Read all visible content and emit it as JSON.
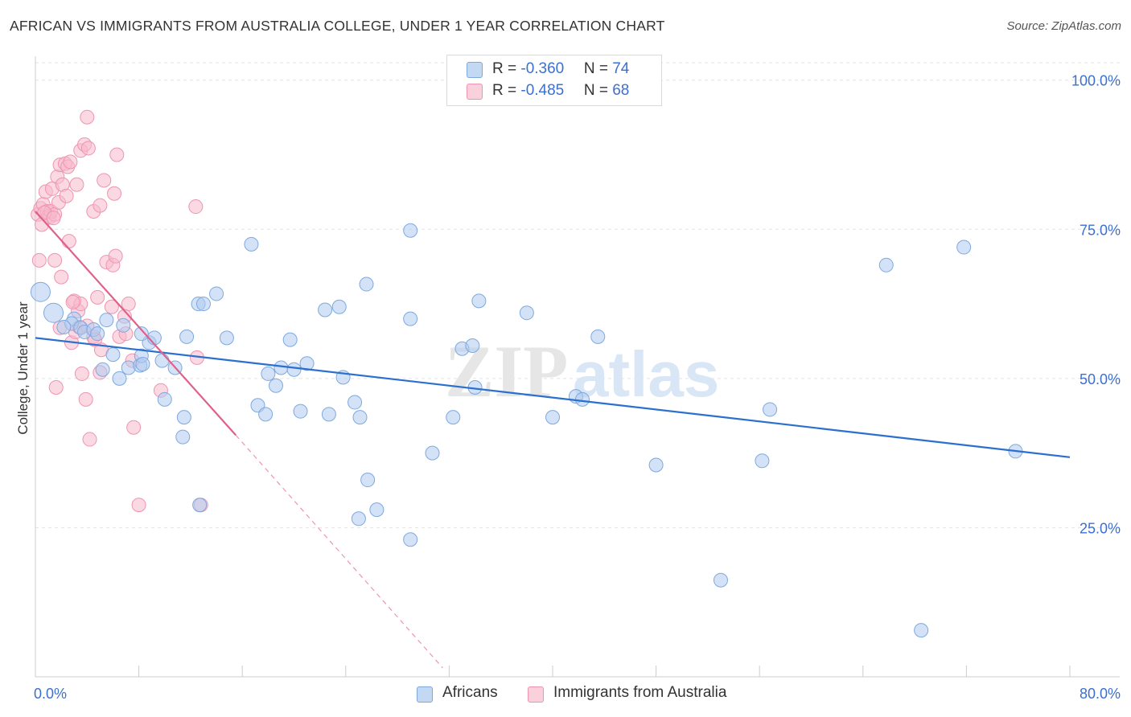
{
  "header": {
    "title": "AFRICAN VS IMMIGRANTS FROM AUSTRALIA COLLEGE, UNDER 1 YEAR CORRELATION CHART",
    "source": "Source: ZipAtlas.com"
  },
  "watermark": {
    "zip": "ZIP",
    "atlas": "atlas"
  },
  "legend": {
    "rows": [
      {
        "r_label": "R = ",
        "r_value": "-0.360",
        "n_label": "N = ",
        "n_value": "74"
      },
      {
        "r_label": "R = ",
        "r_value": "-0.485",
        "n_label": "N = ",
        "n_value": "68"
      }
    ]
  },
  "bottom_legend": {
    "series1": "Africans",
    "series2": "Immigrants from Australia"
  },
  "colors": {
    "blue_fill": "#aecbef",
    "blue_stroke": "#7ea9e0",
    "blue_line": "#2b6fcf",
    "pink_fill": "#f7b9cc",
    "pink_stroke": "#ee94b1",
    "pink_line": "#e0608c",
    "axis_text": "#3b6fd1",
    "grid": "#e3e3e3"
  },
  "chart_data": {
    "type": "scatter",
    "title": "AFRICAN VS IMMIGRANTS FROM AUSTRALIA COLLEGE, UNDER 1 YEAR CORRELATION CHART",
    "xlabel": "",
    "ylabel": "College, Under 1 year",
    "xlim": [
      0,
      80
    ],
    "ylim": [
      0,
      104
    ],
    "x_tick_labels": [
      "0.0%",
      "80.0%"
    ],
    "y_ticks": [
      25,
      50,
      75,
      100
    ],
    "y_tick_labels": [
      "25.0%",
      "50.0%",
      "75.0%",
      "100.0%"
    ],
    "grid": true,
    "legend_position": "top-center",
    "series": [
      {
        "name": "Africans",
        "r": -0.36,
        "n": 74,
        "trend": {
          "x": [
            0,
            80
          ],
          "y": [
            56.8,
            36.8
          ]
        },
        "points": [
          [
            0.4,
            64.5
          ],
          [
            1.4,
            61.0
          ],
          [
            3.0,
            60.0
          ],
          [
            2.8,
            59.2
          ],
          [
            3.5,
            58.5
          ],
          [
            3.8,
            57.8
          ],
          [
            4.5,
            58.2
          ],
          [
            4.8,
            57.5
          ],
          [
            5.5,
            59.8
          ],
          [
            6.0,
            54.0
          ],
          [
            5.2,
            51.5
          ],
          [
            6.5,
            50.0
          ],
          [
            7.2,
            51.8
          ],
          [
            8.1,
            52.2
          ],
          [
            8.8,
            56.0
          ],
          [
            9.2,
            56.8
          ],
          [
            8.2,
            57.5
          ],
          [
            8.2,
            53.8
          ],
          [
            9.8,
            53.0
          ],
          [
            10.0,
            46.5
          ],
          [
            10.8,
            51.8
          ],
          [
            11.7,
            57.0
          ],
          [
            12.6,
            62.5
          ],
          [
            13.0,
            62.5
          ],
          [
            14.0,
            64.2
          ],
          [
            11.5,
            43.5
          ],
          [
            11.4,
            40.2
          ],
          [
            12.7,
            28.8
          ],
          [
            16.7,
            72.5
          ],
          [
            17.2,
            45.5
          ],
          [
            17.8,
            44.0
          ],
          [
            18.0,
            50.8
          ],
          [
            18.6,
            48.8
          ],
          [
            19.0,
            51.8
          ],
          [
            19.7,
            56.5
          ],
          [
            20.0,
            51.5
          ],
          [
            20.5,
            44.5
          ],
          [
            21.0,
            52.5
          ],
          [
            22.4,
            61.5
          ],
          [
            22.7,
            44.0
          ],
          [
            23.5,
            62.0
          ],
          [
            23.8,
            50.2
          ],
          [
            24.7,
            46.0
          ],
          [
            25.1,
            43.5
          ],
          [
            25.0,
            26.5
          ],
          [
            25.7,
            33.0
          ],
          [
            26.4,
            28.0
          ],
          [
            25.6,
            65.8
          ],
          [
            29.0,
            60.0
          ],
          [
            29.0,
            23.0
          ],
          [
            29.0,
            74.8
          ],
          [
            30.7,
            37.5
          ],
          [
            32.3,
            43.5
          ],
          [
            33.0,
            55.0
          ],
          [
            33.8,
            55.5
          ],
          [
            34.0,
            48.5
          ],
          [
            34.3,
            63.0
          ],
          [
            38.0,
            61.0
          ],
          [
            40.0,
            43.5
          ],
          [
            41.8,
            47.0
          ],
          [
            42.3,
            46.5
          ],
          [
            43.5,
            57.0
          ],
          [
            48.0,
            35.5
          ],
          [
            53.0,
            16.2
          ],
          [
            56.2,
            36.2
          ],
          [
            56.8,
            44.8
          ],
          [
            65.8,
            69.0
          ],
          [
            71.8,
            72.0
          ],
          [
            75.8,
            37.8
          ],
          [
            68.5,
            7.8
          ],
          [
            8.3,
            52.4
          ],
          [
            14.8,
            56.8
          ],
          [
            2.2,
            58.6
          ],
          [
            6.8,
            58.9
          ]
        ]
      },
      {
        "name": "Immigrants from Australia",
        "r": -0.485,
        "n": 68,
        "trend": {
          "x": [
            0,
            15.5
          ],
          "y": [
            78.0,
            40.5
          ]
        },
        "trend_extension": {
          "x": [
            15.5,
            31.5
          ],
          "y": [
            40.5,
            1.5
          ]
        },
        "points": [
          [
            0.2,
            77.5
          ],
          [
            0.4,
            78.5
          ],
          [
            0.6,
            79.2
          ],
          [
            0.9,
            78.0
          ],
          [
            1.0,
            77.2
          ],
          [
            1.1,
            77.0
          ],
          [
            1.2,
            78.0
          ],
          [
            1.5,
            77.5
          ],
          [
            0.8,
            81.3
          ],
          [
            1.3,
            81.8
          ],
          [
            1.7,
            83.8
          ],
          [
            1.9,
            85.8
          ],
          [
            2.3,
            86.0
          ],
          [
            2.1,
            82.5
          ],
          [
            2.5,
            85.5
          ],
          [
            2.7,
            86.3
          ],
          [
            3.2,
            82.5
          ],
          [
            3.5,
            88.2
          ],
          [
            3.8,
            89.2
          ],
          [
            4.0,
            93.8
          ],
          [
            4.5,
            78.0
          ],
          [
            5.0,
            79.0
          ],
          [
            5.3,
            83.2
          ],
          [
            6.1,
            81.0
          ],
          [
            6.3,
            87.5
          ],
          [
            0.3,
            69.8
          ],
          [
            1.5,
            69.8
          ],
          [
            2.0,
            67.0
          ],
          [
            2.6,
            73.0
          ],
          [
            3.0,
            63.0
          ],
          [
            3.3,
            61.3
          ],
          [
            3.5,
            62.5
          ],
          [
            4.0,
            58.8
          ],
          [
            4.5,
            57.0
          ],
          [
            4.6,
            56.5
          ],
          [
            5.1,
            54.8
          ],
          [
            5.5,
            69.5
          ],
          [
            6.0,
            69.0
          ],
          [
            6.2,
            70.5
          ],
          [
            5.9,
            62.0
          ],
          [
            6.5,
            57.0
          ],
          [
            7.0,
            57.5
          ],
          [
            7.2,
            62.5
          ],
          [
            7.5,
            53.0
          ],
          [
            2.8,
            56.0
          ],
          [
            3.1,
            57.8
          ],
          [
            1.9,
            58.5
          ],
          [
            1.6,
            48.5
          ],
          [
            3.6,
            50.8
          ],
          [
            3.9,
            46.5
          ],
          [
            4.2,
            39.8
          ],
          [
            5.0,
            51.0
          ],
          [
            7.6,
            41.8
          ],
          [
            8.0,
            28.8
          ],
          [
            9.7,
            48.0
          ],
          [
            12.4,
            78.8
          ],
          [
            12.5,
            53.5
          ],
          [
            12.8,
            28.8
          ],
          [
            1.8,
            79.5
          ],
          [
            2.4,
            80.6
          ],
          [
            0.5,
            75.8
          ],
          [
            3.4,
            58.6
          ],
          [
            4.8,
            63.6
          ],
          [
            2.9,
            62.8
          ],
          [
            0.7,
            77.8
          ],
          [
            1.4,
            76.9
          ],
          [
            6.9,
            60.4
          ],
          [
            4.1,
            88.6
          ]
        ]
      }
    ]
  }
}
